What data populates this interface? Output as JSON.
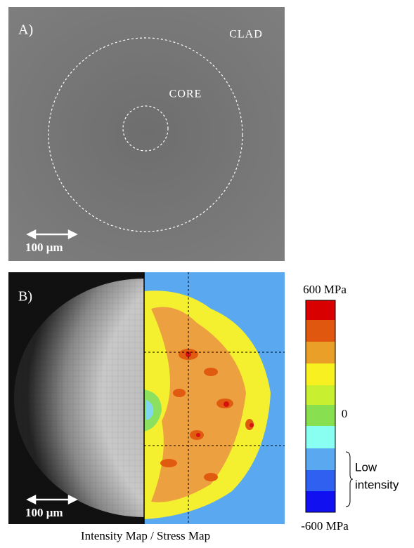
{
  "panel_a": {
    "label": "A)",
    "clad": "CLAD",
    "core": "CORE",
    "scale": "100 μm"
  },
  "panel_b": {
    "label": "B)",
    "scale": "100 μm",
    "colorbar": {
      "top": "600 MPa",
      "middle": "0",
      "bottom": "-600 MPa",
      "note_line1": "Low",
      "note_line2": "intensity"
    }
  },
  "caption": "Intensity Map / Stress Map"
}
